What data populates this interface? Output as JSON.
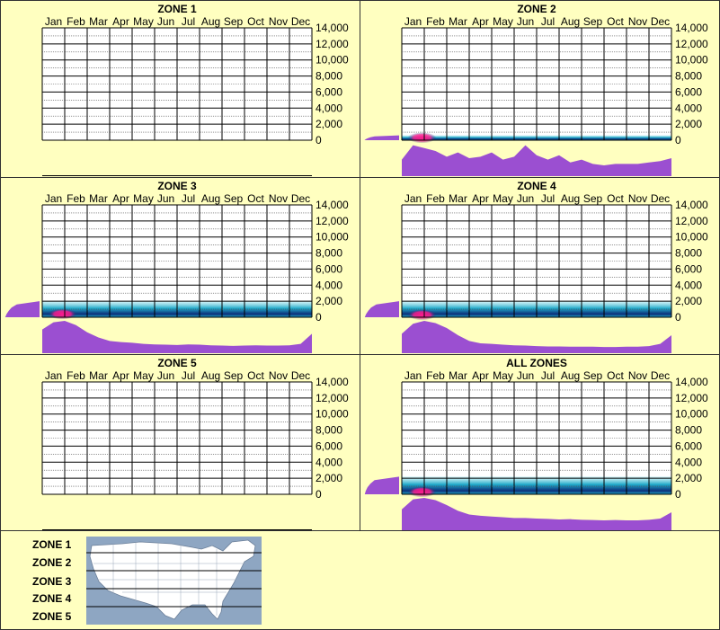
{
  "months": [
    "Jan",
    "Feb",
    "Mar",
    "Apr",
    "May",
    "Jun",
    "Jul",
    "Aug",
    "Sep",
    "Oct",
    "Nov",
    "Dec"
  ],
  "y_ticks": [
    "14,000",
    "12,000",
    "10,000",
    "8,000",
    "6,000",
    "4,000",
    "2,000",
    "0"
  ],
  "colors": {
    "background": "#ffffc0",
    "profile": "#9b4fd1",
    "density_low": "#a8e8f0",
    "density_mid": "#1fa8c8",
    "density_high": "#0c2f7a",
    "density_peak": "#ff1a8c",
    "map_water": "#8ea6c2",
    "map_land": "#ffffff"
  },
  "chart_data": [
    {
      "type": "heatmap",
      "title": "ZONE 1",
      "has_data": false,
      "x_categories": [
        "Jan",
        "Feb",
        "Mar",
        "Apr",
        "May",
        "Jun",
        "Jul",
        "Aug",
        "Sep",
        "Oct",
        "Nov",
        "Dec"
      ],
      "ylim": [
        0,
        14000
      ],
      "monthly_profile": [],
      "elevation_profile": []
    },
    {
      "type": "heatmap",
      "title": "ZONE 2",
      "has_data": true,
      "x_categories": [
        "Jan",
        "Feb",
        "Mar",
        "Apr",
        "May",
        "Jun",
        "Jul",
        "Aug",
        "Sep",
        "Oct",
        "Nov",
        "Dec"
      ],
      "ylim": [
        0,
        14000
      ],
      "density_band_top": 600,
      "peak": {
        "month": "Jan",
        "elevation": 300
      },
      "monthly_profile": [
        0.45,
        0.95,
        0.85,
        0.75,
        0.55,
        0.7,
        0.5,
        0.55,
        0.7,
        0.45,
        0.55,
        0.95,
        0.6,
        0.45,
        0.6,
        0.35,
        0.45,
        0.3,
        0.25,
        0.3,
        0.3,
        0.3,
        0.35,
        0.4,
        0.5
      ],
      "elevation_profile": [
        0.01,
        0.05,
        0.1,
        0.18,
        0.3,
        1.0
      ]
    },
    {
      "type": "heatmap",
      "title": "ZONE 3",
      "has_data": true,
      "x_categories": [
        "Jan",
        "Feb",
        "Mar",
        "Apr",
        "May",
        "Jun",
        "Jul",
        "Aug",
        "Sep",
        "Oct",
        "Nov",
        "Dec"
      ],
      "ylim": [
        0,
        14000
      ],
      "density_band_top": 2000,
      "peak": {
        "month": "Jan",
        "elevation": 400
      },
      "monthly_profile": [
        0.7,
        0.95,
        1.0,
        0.85,
        0.6,
        0.42,
        0.3,
        0.26,
        0.24,
        0.2,
        0.18,
        0.17,
        0.16,
        0.18,
        0.17,
        0.15,
        0.14,
        0.13,
        0.14,
        0.15,
        0.14,
        0.14,
        0.15,
        0.2,
        0.55
      ],
      "elevation_profile": [
        0.02,
        0.06,
        0.12,
        0.2,
        0.35,
        1.0
      ]
    },
    {
      "type": "heatmap",
      "title": "ZONE 4",
      "has_data": true,
      "x_categories": [
        "Jan",
        "Feb",
        "Mar",
        "Apr",
        "May",
        "Jun",
        "Jul",
        "Aug",
        "Sep",
        "Oct",
        "Nov",
        "Dec"
      ],
      "ylim": [
        0,
        14000
      ],
      "density_band_top": 2000,
      "peak": {
        "month": "Jan",
        "elevation": 300
      },
      "monthly_profile": [
        0.55,
        0.9,
        1.0,
        0.92,
        0.75,
        0.5,
        0.3,
        0.22,
        0.2,
        0.17,
        0.15,
        0.14,
        0.12,
        0.11,
        0.11,
        0.1,
        0.1,
        0.1,
        0.09,
        0.09,
        0.1,
        0.1,
        0.12,
        0.2,
        0.5
      ],
      "elevation_profile": [
        0.02,
        0.06,
        0.12,
        0.2,
        0.35,
        1.0
      ]
    },
    {
      "type": "heatmap",
      "title": "ZONE 5",
      "has_data": false,
      "x_categories": [
        "Jan",
        "Feb",
        "Mar",
        "Apr",
        "May",
        "Jun",
        "Jul",
        "Aug",
        "Sep",
        "Oct",
        "Nov",
        "Dec"
      ],
      "ylim": [
        0,
        14000
      ],
      "monthly_profile": [],
      "elevation_profile": []
    },
    {
      "type": "heatmap",
      "title": "ALL ZONES",
      "has_data": true,
      "x_categories": [
        "Jan",
        "Feb",
        "Mar",
        "Apr",
        "May",
        "Jun",
        "Jul",
        "Aug",
        "Sep",
        "Oct",
        "Nov",
        "Dec"
      ],
      "ylim": [
        0,
        14000
      ],
      "density_band_top": 2200,
      "peak": {
        "month": "Jan",
        "elevation": 300
      },
      "monthly_profile": [
        0.6,
        0.95,
        1.0,
        0.92,
        0.75,
        0.55,
        0.42,
        0.38,
        0.35,
        0.33,
        0.3,
        0.3,
        0.28,
        0.27,
        0.25,
        0.26,
        0.24,
        0.23,
        0.22,
        0.23,
        0.22,
        0.22,
        0.24,
        0.28,
        0.5
      ],
      "elevation_profile": [
        0.02,
        0.05,
        0.1,
        0.18,
        0.3,
        1.0
      ]
    }
  ],
  "legend": {
    "zones": [
      "ZONE 1",
      "ZONE 2",
      "ZONE 3",
      "ZONE 4",
      "ZONE 5"
    ],
    "map_icon": "us-map-zones-icon"
  }
}
